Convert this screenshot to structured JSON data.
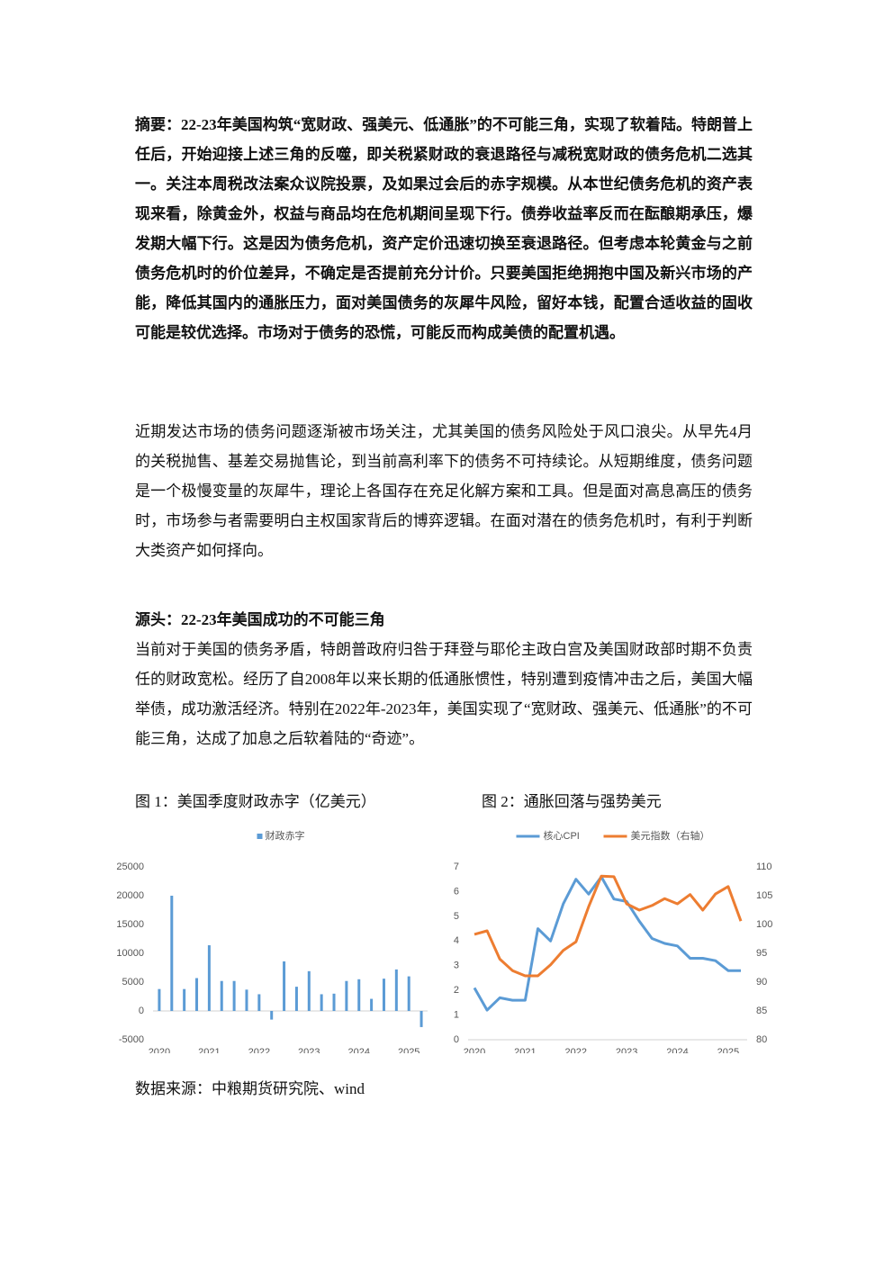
{
  "document": {
    "abstract": "摘要：22-23年美国构筑“宽财政、强美元、低通胀”的不可能三角，实现了软着陆。特朗普上任后，开始迎接上述三角的反噬，即关税紧财政的衰退路径与减税宽财政的债务危机二选其一。关注本周税改法案众议院投票，及如果过会后的赤字规模。从本世纪债务危机的资产表现来看，除黄金外，权益与商品均在危机期间呈现下行。债券收益率反而在酝酿期承压，爆发期大幅下行。这是因为债务危机，资产定价迅速切换至衰退路径。但考虑本轮黄金与之前债务危机时的价位差异，不确定是否提前充分计价。只要美国拒绝拥抱中国及新兴市场的产能，降低其国内的通胀压力，面对美国债务的灰犀牛风险，留好本钱，配置合适收益的固收可能是较优选择。市场对于债务的恐慌，可能反而构成美债的配置机遇。",
    "intro": "近期发达市场的债务问题逐渐被市场关注，尤其美国的债务风险处于风口浪尖。从早先4月的关税抛售、基差交易抛售论，到当前高利率下的债务不可持续论。从短期维度，债务问题是一个极慢变量的灰犀牛，理论上各国存在充足化解方案和工具。但是面对高息高压的债务时，市场参与者需要明白主权国家背后的博弈逻辑。在面对潜在的债务危机时，有利于判断大类资产如何择向。",
    "section_heading": "源头：22-23年美国成功的不可能三角",
    "section_text": "当前对于美国的债务矛盾，特朗普政府归咎于拜登与耶伦主政白宫及美国财政部时期不负责任的财政宽松。经历了自2008年以来长期的低通胀惯性，特别遭到疫情冲击之后，美国大幅举债，成功激活经济。特别在2022年-2023年，美国实现了“宽财政、强美元、低通胀”的不可能三角，达成了加息之后软着陆的“奇迹”。",
    "source": "数据来源：中粮期货研究院、wind"
  },
  "chart_data": [
    {
      "type": "bar",
      "title": "图 1：美国季度财政赤字（亿美元）",
      "categories": [
        "2020",
        null,
        null,
        null,
        "2021",
        null,
        null,
        null,
        "2022",
        null,
        null,
        null,
        "2023",
        null,
        null,
        null,
        "2024",
        null,
        null,
        null,
        "2025",
        null
      ],
      "series": [
        {
          "name": "财政赤字",
          "color": "#5b9bd5",
          "values": [
            3800,
            20000,
            3800,
            5700,
            11400,
            5200,
            5200,
            3700,
            2900,
            -1500,
            8600,
            4200,
            6900,
            2900,
            3000,
            5200,
            5500,
            2100,
            5600,
            7200,
            6000,
            -2800
          ]
        }
      ],
      "ylim": [
        -5000,
        25000
      ],
      "yticks": [
        -5000,
        0,
        5000,
        10000,
        15000,
        20000,
        25000
      ],
      "legend": "top"
    },
    {
      "type": "line",
      "title": "图 2：通胀回落与强势美元",
      "categories": [
        "2020",
        null,
        null,
        null,
        "2021",
        null,
        null,
        null,
        "2022",
        null,
        null,
        null,
        "2023",
        null,
        null,
        null,
        "2024",
        null,
        null,
        null,
        "2025",
        null
      ],
      "series": [
        {
          "name": "核心CPI",
          "color": "#5b9bd5",
          "values": [
            2.1,
            1.2,
            1.7,
            1.6,
            1.6,
            4.5,
            4.0,
            5.5,
            6.5,
            5.9,
            6.6,
            5.7,
            5.6,
            4.8,
            4.1,
            3.9,
            3.8,
            3.3,
            3.3,
            3.2,
            2.8,
            2.8
          ]
        },
        {
          "name": "美元指数（右轴）",
          "color": "#ed7d31",
          "axis": "y2",
          "values": [
            98.3,
            98.9,
            94,
            92,
            91.1,
            91.1,
            93,
            95.5,
            97,
            103.1,
            108.4,
            108.3,
            103.6,
            102.5,
            103.3,
            104.5,
            103.6,
            105.2,
            102.5,
            105.3,
            106.6,
            100.6
          ]
        }
      ],
      "ylim": [
        0,
        7
      ],
      "yticks": [
        0,
        1,
        2,
        3,
        4,
        5,
        6,
        7
      ],
      "y2lim": [
        80,
        110
      ],
      "y2ticks": [
        80,
        85,
        90,
        95,
        100,
        105,
        110
      ],
      "legend": "top"
    }
  ]
}
